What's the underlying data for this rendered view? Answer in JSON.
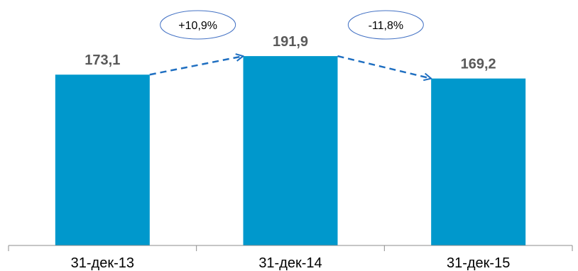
{
  "colors": {
    "bar": "#0098cc",
    "arrow": "#1f6fc1",
    "ellipse_stroke": "#4472c4",
    "axis": "#8c8c8c",
    "value_label": "#595959"
  },
  "chart_data": {
    "type": "bar",
    "categories": [
      "31-дек-13",
      "31-дек-14",
      "31-дек-15"
    ],
    "values": [
      173.1,
      191.9,
      169.2
    ],
    "value_labels": [
      "173,1",
      "191,9",
      "169,2"
    ],
    "annotations": [
      {
        "from": 0,
        "to": 1,
        "label": "+10,9%"
      },
      {
        "from": 1,
        "to": 2,
        "label": "-11,8%"
      }
    ],
    "ylim": [
      0,
      220
    ],
    "grid": false,
    "legend": "none"
  }
}
